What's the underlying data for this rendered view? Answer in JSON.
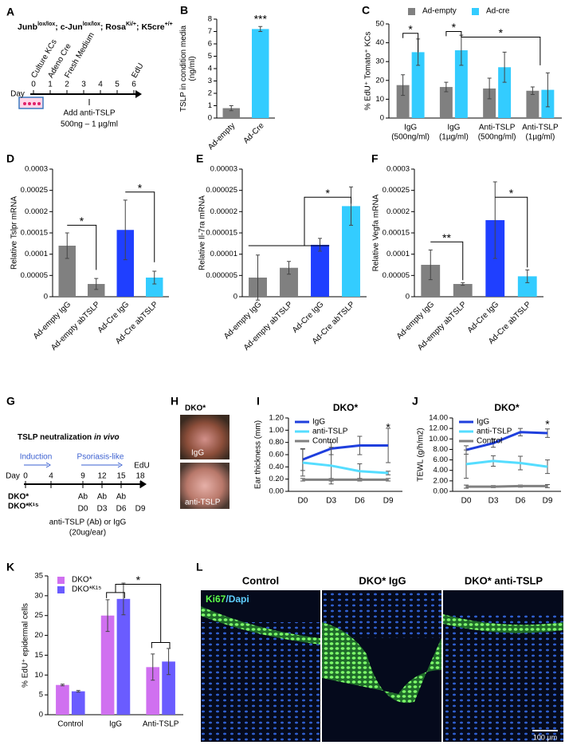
{
  "panel_labels": [
    "A",
    "B",
    "C",
    "D",
    "E",
    "F",
    "G",
    "H",
    "I",
    "J",
    "K",
    "L"
  ],
  "panel_a": {
    "genotype": [
      "Junb",
      "lox/lox",
      "; c-Jun",
      "lox/lox",
      "; Rosa",
      "Ki/+",
      "; K5cre",
      "+/+"
    ],
    "day_label": "Day",
    "days": [
      0,
      1,
      2,
      3,
      4,
      5,
      6
    ],
    "steps": [
      "Culture KCs",
      "Adeno Cre",
      "Fresh Medium"
    ],
    "edu": "EdU",
    "treatment": [
      "Add anti-TSLP",
      "500ng – 1 µg/ml"
    ]
  },
  "panel_g": {
    "title": [
      "TSLP neutralization ",
      "in vivo"
    ],
    "phases": [
      "Induction",
      "Psoriasis-like"
    ],
    "day_label": "Day",
    "days": [
      0,
      4,
      9,
      12,
      15,
      18
    ],
    "edu": "EdU",
    "ab": [
      "Ab",
      "Ab",
      "Ab"
    ],
    "mice": [
      "DKO*",
      "DKO*ᴷ¹⁵"
    ],
    "timepoints": [
      "D0",
      "D3",
      "D6",
      "D9"
    ],
    "treatment": [
      "anti-TSLP (Ab) or IgG",
      "(20ug/ear)"
    ]
  },
  "panel_h": {
    "title": "DKO*",
    "photos": [
      "IgG",
      "anti-TSLP"
    ]
  },
  "panel_l": {
    "titles": [
      "Control",
      "DKO* IgG",
      "DKO* anti-TSLP"
    ],
    "stain": [
      "Ki67",
      "/Dapi"
    ],
    "scale": "100 µm"
  },
  "chart_data": [
    {
      "type": "bar",
      "categories": [
        [
          "Ad-empty"
        ],
        [
          "Ad-Cre"
        ]
      ],
      "values": [
        0.8,
        7.2
      ],
      "errors": [
        0.2,
        0.2
      ],
      "colors": [
        "#808080",
        "#33ccff"
      ],
      "y_label": [
        "TSLP in condition media",
        "(ng/ml)"
      ],
      "ylim": [
        0,
        8
      ],
      "yticks": [
        0,
        1,
        2,
        3,
        4,
        5,
        6,
        7,
        8
      ],
      "annotations": [
        "***"
      ]
    },
    {
      "type": "bar",
      "categories": [
        [
          "IgG",
          "(500ng/ml)"
        ],
        [
          "IgG",
          "(1µg/ml)"
        ],
        [
          "Anti-TSLP",
          "(500ng/ml)"
        ],
        [
          "Anti-TSLP",
          "(1µg/ml)"
        ]
      ],
      "series": [
        {
          "name": "Ad-empty",
          "color": "#808080",
          "values": [
            17.5,
            16.5,
            15.7,
            14.5
          ],
          "errors": [
            5.5,
            2.5,
            5.5,
            2
          ]
        },
        {
          "name": "Ad-cre",
          "color": "#33ccff",
          "values": [
            35,
            36,
            27,
            15
          ],
          "errors": [
            7,
            8,
            8,
            9
          ]
        }
      ],
      "y_label": [
        "% EdU⁺ Tomato⁺ KCs"
      ],
      "ylim": [
        0,
        50
      ],
      "yticks": [
        0,
        10,
        20,
        30,
        40,
        50
      ],
      "legend": "top",
      "annotations": [
        "*",
        "*",
        "*"
      ]
    },
    {
      "type": "bar",
      "categories": [
        [
          "Ad-empty IgG"
        ],
        [
          "Ad-empty abTSLP"
        ],
        [
          "Ad-Cre IgG"
        ],
        [
          "Ad-Cre abTSLP"
        ]
      ],
      "values": [
        0.00012,
        3e-05,
        0.000157,
        4.5e-05
      ],
      "errors": [
        3e-05,
        1.3e-05,
        7e-05,
        1.5e-05
      ],
      "colors": [
        "#808080",
        "#808080",
        "#1f3fff",
        "#33ccff"
      ],
      "y_label": [
        "Relative Tslpr mRNA"
      ],
      "ylim": [
        0,
        0.0003
      ],
      "yticks": [
        0,
        5e-05,
        0.0001,
        0.00015,
        0.0002,
        0.00025,
        0.0003
      ],
      "annotations": [
        "*",
        "*"
      ]
    },
    {
      "type": "bar",
      "categories": [
        [
          "Ad-empty IgG"
        ],
        [
          "Ad-empty abTSLP"
        ],
        [
          "Ad-Cre IgG"
        ],
        [
          "Ad-Cre abTSLP"
        ]
      ],
      "values": [
        4.5e-06,
        6.8e-06,
        1.22e-05,
        2.13e-05
      ],
      "errors": [
        5.3e-06,
        1.5e-06,
        1.5e-06,
        4.5e-06
      ],
      "colors": [
        "#808080",
        "#808080",
        "#1f3fff",
        "#33ccff"
      ],
      "y_label": [
        "Relative Il-7ra mRNA"
      ],
      "ylim": [
        0,
        3e-05
      ],
      "yticks": [
        0,
        5e-06,
        1e-05,
        1.5e-05,
        2e-05,
        2.5e-05,
        3e-05
      ],
      "annotations": [
        "*"
      ]
    },
    {
      "type": "bar",
      "categories": [
        [
          "Ad-empty IgG"
        ],
        [
          "Ad-empty abTSLP"
        ],
        [
          "Ad-Cre IgG"
        ],
        [
          "Ad-Cre abTSLP"
        ]
      ],
      "values": [
        7.5e-05,
        3e-05,
        0.00018,
        4.8e-05
      ],
      "errors": [
        3.5e-05,
        3e-06,
        9e-05,
        1.5e-05
      ],
      "colors": [
        "#808080",
        "#808080",
        "#1f3fff",
        "#33ccff"
      ],
      "y_label": [
        "Relative Vegfa mRNA"
      ],
      "ylim": [
        0,
        0.0003
      ],
      "yticks": [
        0,
        5e-05,
        0.0001,
        0.00015,
        0.0002,
        0.00025,
        0.0003
      ],
      "annotations": [
        "**",
        "*"
      ]
    },
    {
      "type": "line",
      "title": "DKO*",
      "categories": [
        [
          "D0"
        ],
        [
          "D3"
        ],
        [
          "D6"
        ],
        [
          "D9"
        ]
      ],
      "series": [
        {
          "name": "IgG",
          "color": "#1f3fdd",
          "values": [
            0.52,
            0.7,
            0.75,
            0.75
          ],
          "errors": [
            0.18,
            0.1,
            0.15,
            0.28
          ]
        },
        {
          "name": "anti-TSLP",
          "color": "#55ddff",
          "values": [
            0.47,
            0.42,
            0.33,
            0.3
          ],
          "errors": [
            0.22,
            0.3,
            0.12,
            0.03
          ]
        },
        {
          "name": "Control",
          "color": "#808080",
          "values": [
            0.19,
            0.19,
            0.19,
            0.19
          ],
          "errors": [
            0.02,
            0.02,
            0.02,
            0.02
          ]
        }
      ],
      "y_label": [
        "Ear thickness (mm)"
      ],
      "ylim": [
        0,
        1.2
      ],
      "yticks": [
        {
          "value": 0,
          "label": "0.00"
        },
        {
          "value": 0.2,
          "label": "0.20"
        },
        {
          "value": 0.4,
          "label": "0.40"
        },
        {
          "value": 0.6,
          "label": "0.60"
        },
        {
          "value": 0.8,
          "label": "0.80"
        },
        {
          "value": 1,
          "label": "1.00"
        },
        {
          "value": 1.2,
          "label": "1.20"
        }
      ],
      "legend": "upper left",
      "annotations": [
        "*"
      ]
    },
    {
      "type": "line",
      "title": "DKO*",
      "categories": [
        [
          "D0"
        ],
        [
          "D3"
        ],
        [
          "D6"
        ],
        [
          "D9"
        ]
      ],
      "series": [
        {
          "name": "IgG",
          "color": "#1f3fdd",
          "values": [
            7.9,
            9.2,
            11.3,
            11.1
          ],
          "errors": [
            0.8,
            0.8,
            0.7,
            0.8
          ]
        },
        {
          "name": "anti-TSLP",
          "color": "#55ddff",
          "values": [
            5.2,
            5.8,
            5.4,
            4.7
          ],
          "errors": [
            2.7,
            1,
            1.3,
            1.3
          ]
        },
        {
          "name": "Control",
          "color": "#808080",
          "values": [
            0.9,
            0.9,
            1.0,
            1.0
          ],
          "errors": [
            0.3,
            0.2,
            0.2,
            0.3
          ]
        }
      ],
      "y_label": [
        "TEWL (g/h/m2)"
      ],
      "ylim": [
        0,
        14
      ],
      "yticks": [
        {
          "value": 0,
          "label": "0.00"
        },
        {
          "value": 2,
          "label": "2.00"
        },
        {
          "value": 4,
          "label": "4.00"
        },
        {
          "value": 6,
          "label": "6.00"
        },
        {
          "value": 8,
          "label": "8.00"
        },
        {
          "value": 10,
          "label": "10.00"
        },
        {
          "value": 12,
          "label": "12.00"
        },
        {
          "value": 14,
          "label": "14.00"
        }
      ],
      "legend": "upper left",
      "annotations": [
        "*"
      ]
    },
    {
      "type": "bar",
      "categories": [
        [
          "Control"
        ],
        [
          "IgG"
        ],
        [
          "Anti-TSLP"
        ]
      ],
      "series": [
        {
          "name": "DKO*",
          "color": "#d070f0",
          "values": [
            7.5,
            25,
            12
          ],
          "errors": [
            0.2,
            4,
            3.3
          ]
        },
        {
          "name": "DKO*ᴷ¹⁵",
          "color": "#6a5cff",
          "values": [
            5.9,
            29.2,
            13.4
          ],
          "errors": [
            0.2,
            4,
            3.3
          ]
        }
      ],
      "y_label": [
        "% EdU⁺ epidermal cells"
      ],
      "ylim": [
        0,
        35
      ],
      "yticks": [
        0,
        5,
        10,
        15,
        20,
        25,
        30,
        35
      ],
      "legend": "upper left",
      "annotations": [
        "*"
      ]
    }
  ]
}
